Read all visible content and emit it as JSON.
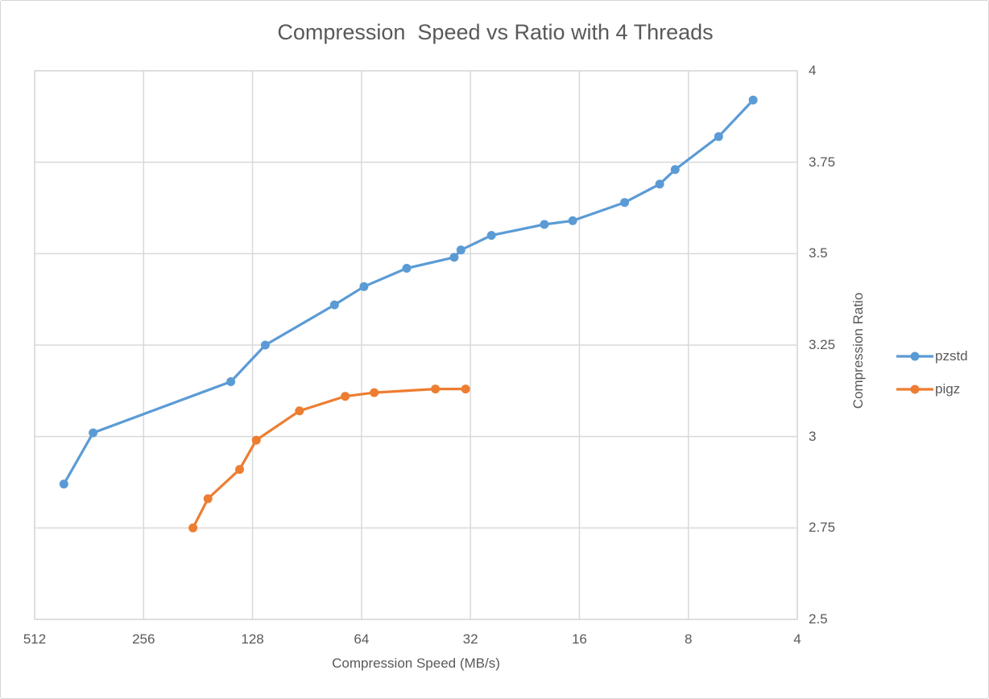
{
  "chart_data": {
    "type": "line",
    "title": "Compression  Speed vs Ratio with 4 Threads",
    "xlabel": "Compression Speed (MB/s)",
    "ylabel": "Compression Ratio",
    "x_scale": "log2",
    "x_reversed": true,
    "xlim": [
      512,
      4
    ],
    "ylim": [
      2.5,
      4
    ],
    "x_ticks": [
      512,
      256,
      128,
      64,
      32,
      16,
      8,
      4
    ],
    "y_ticks": [
      4,
      3.75,
      3.5,
      3.25,
      3,
      2.75,
      2.5
    ],
    "grid": true,
    "legend_position": "right",
    "colors": {
      "grid": "#d9d9d9",
      "text": "#595959"
    },
    "series": [
      {
        "name": "pzstd",
        "color": "#5B9BD5",
        "points": [
          {
            "speed": 425,
            "ratio": 2.87
          },
          {
            "speed": 353,
            "ratio": 3.01
          },
          {
            "speed": 147,
            "ratio": 3.15
          },
          {
            "speed": 118,
            "ratio": 3.25
          },
          {
            "speed": 76,
            "ratio": 3.36
          },
          {
            "speed": 63,
            "ratio": 3.41
          },
          {
            "speed": 48,
            "ratio": 3.46
          },
          {
            "speed": 35.5,
            "ratio": 3.49
          },
          {
            "speed": 34,
            "ratio": 3.51
          },
          {
            "speed": 28,
            "ratio": 3.55
          },
          {
            "speed": 20,
            "ratio": 3.58
          },
          {
            "speed": 16.7,
            "ratio": 3.59
          },
          {
            "speed": 12,
            "ratio": 3.64
          },
          {
            "speed": 9.6,
            "ratio": 3.69
          },
          {
            "speed": 8.7,
            "ratio": 3.73
          },
          {
            "speed": 6.6,
            "ratio": 3.82
          },
          {
            "speed": 5.3,
            "ratio": 3.92
          }
        ]
      },
      {
        "name": "pigz",
        "color": "#ED7D31",
        "points": [
          {
            "speed": 187,
            "ratio": 2.75
          },
          {
            "speed": 170,
            "ratio": 2.83
          },
          {
            "speed": 139,
            "ratio": 2.91
          },
          {
            "speed": 125,
            "ratio": 2.99
          },
          {
            "speed": 95,
            "ratio": 3.07
          },
          {
            "speed": 71,
            "ratio": 3.11
          },
          {
            "speed": 59,
            "ratio": 3.12
          },
          {
            "speed": 40,
            "ratio": 3.13
          },
          {
            "speed": 33,
            "ratio": 3.13
          }
        ]
      }
    ]
  }
}
